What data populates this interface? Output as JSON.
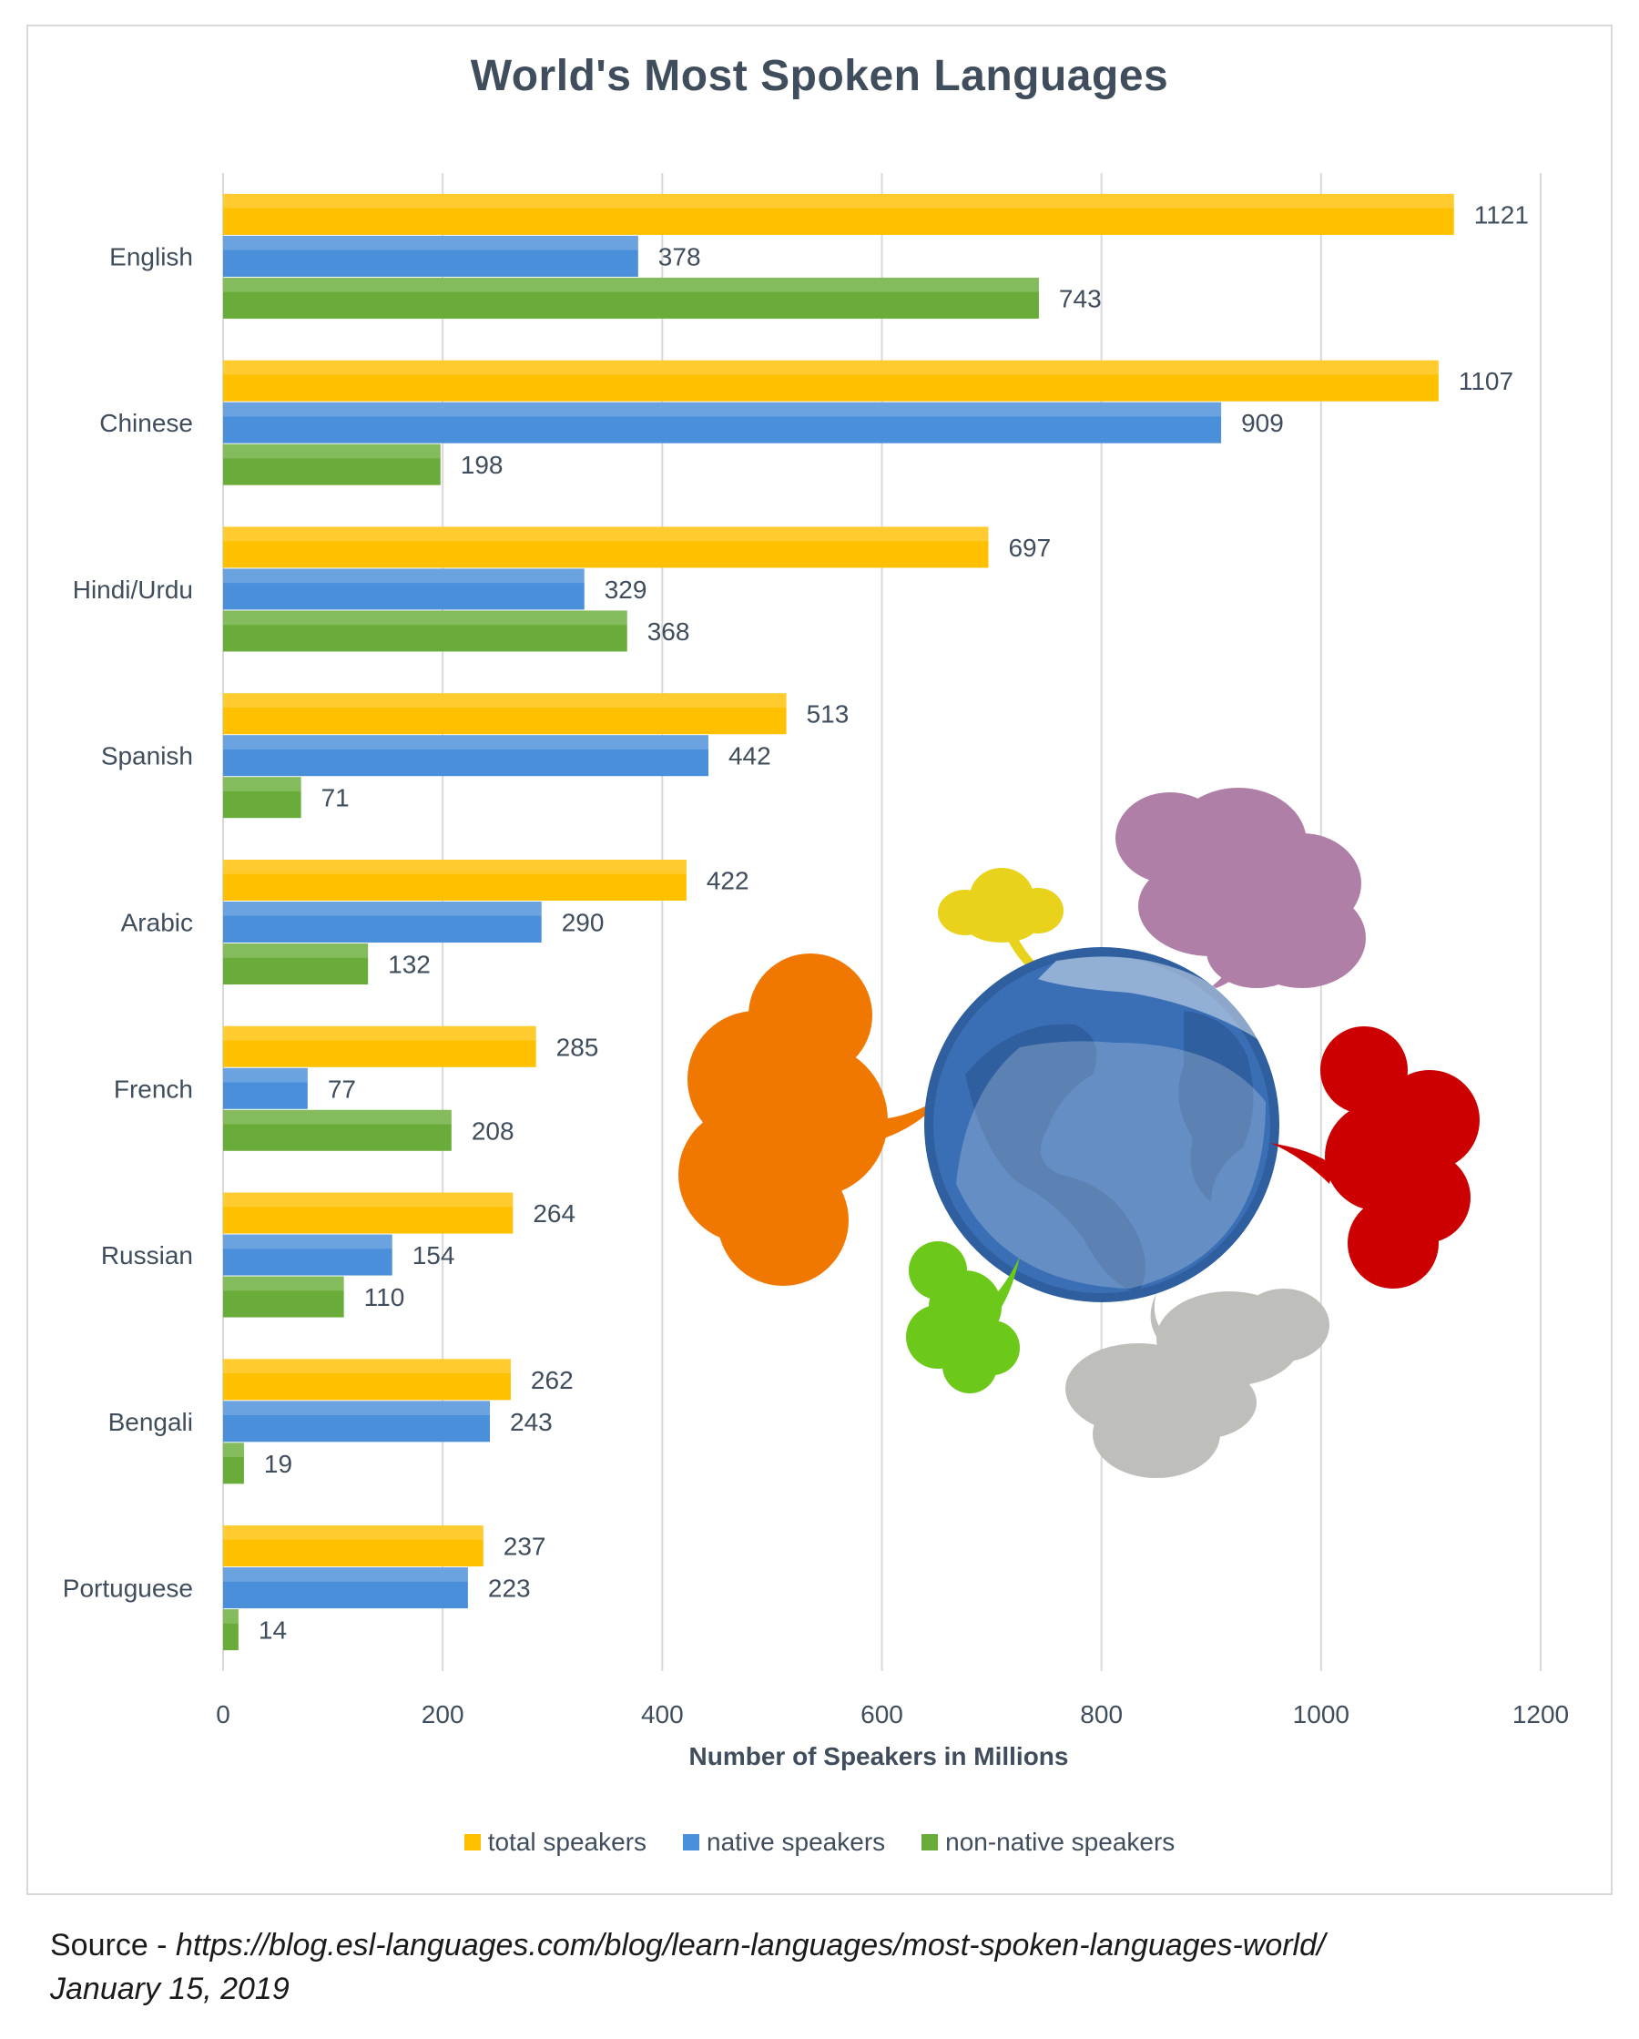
{
  "chart_data": {
    "type": "bar",
    "orientation": "horizontal",
    "title": "World's Most Spoken Languages",
    "xlabel": "Number of Speakers in Millions",
    "ylabel": "",
    "xlim": [
      0,
      1200
    ],
    "x_ticks": [
      0,
      200,
      400,
      600,
      800,
      1000,
      1200
    ],
    "grid": true,
    "legend_position": "bottom",
    "categories": [
      "English",
      "Chinese",
      "Hindi/Urdu",
      "Spanish",
      "Arabic",
      "French",
      "Russian",
      "Bengali",
      "Portuguese"
    ],
    "series": [
      {
        "name": "total speakers",
        "color": "#ffc000",
        "values": [
          1121,
          1107,
          697,
          513,
          422,
          285,
          264,
          262,
          237
        ]
      },
      {
        "name": "native speakers",
        "color": "#4a8fd9",
        "values": [
          378,
          909,
          329,
          442,
          290,
          77,
          154,
          243,
          223
        ]
      },
      {
        "name": "non-native speakers",
        "color": "#6aac3a",
        "values": [
          743,
          198,
          368,
          71,
          132,
          208,
          110,
          19,
          14
        ]
      }
    ]
  },
  "source": {
    "prefix": "Source - ",
    "url": "https://blog.esl-languages.com/blog/learn-languages/most-spoken-languages-world/",
    "date": "January 15, 2019"
  },
  "illustration": {
    "icon": "globe-with-speech-bubbles-icon",
    "bubble_colors": [
      "#f07800",
      "#e8d21c",
      "#b07fa8",
      "#cc0000",
      "#6cc91a",
      "#bebfbb"
    ],
    "globe_color": "#3a6fb5"
  }
}
